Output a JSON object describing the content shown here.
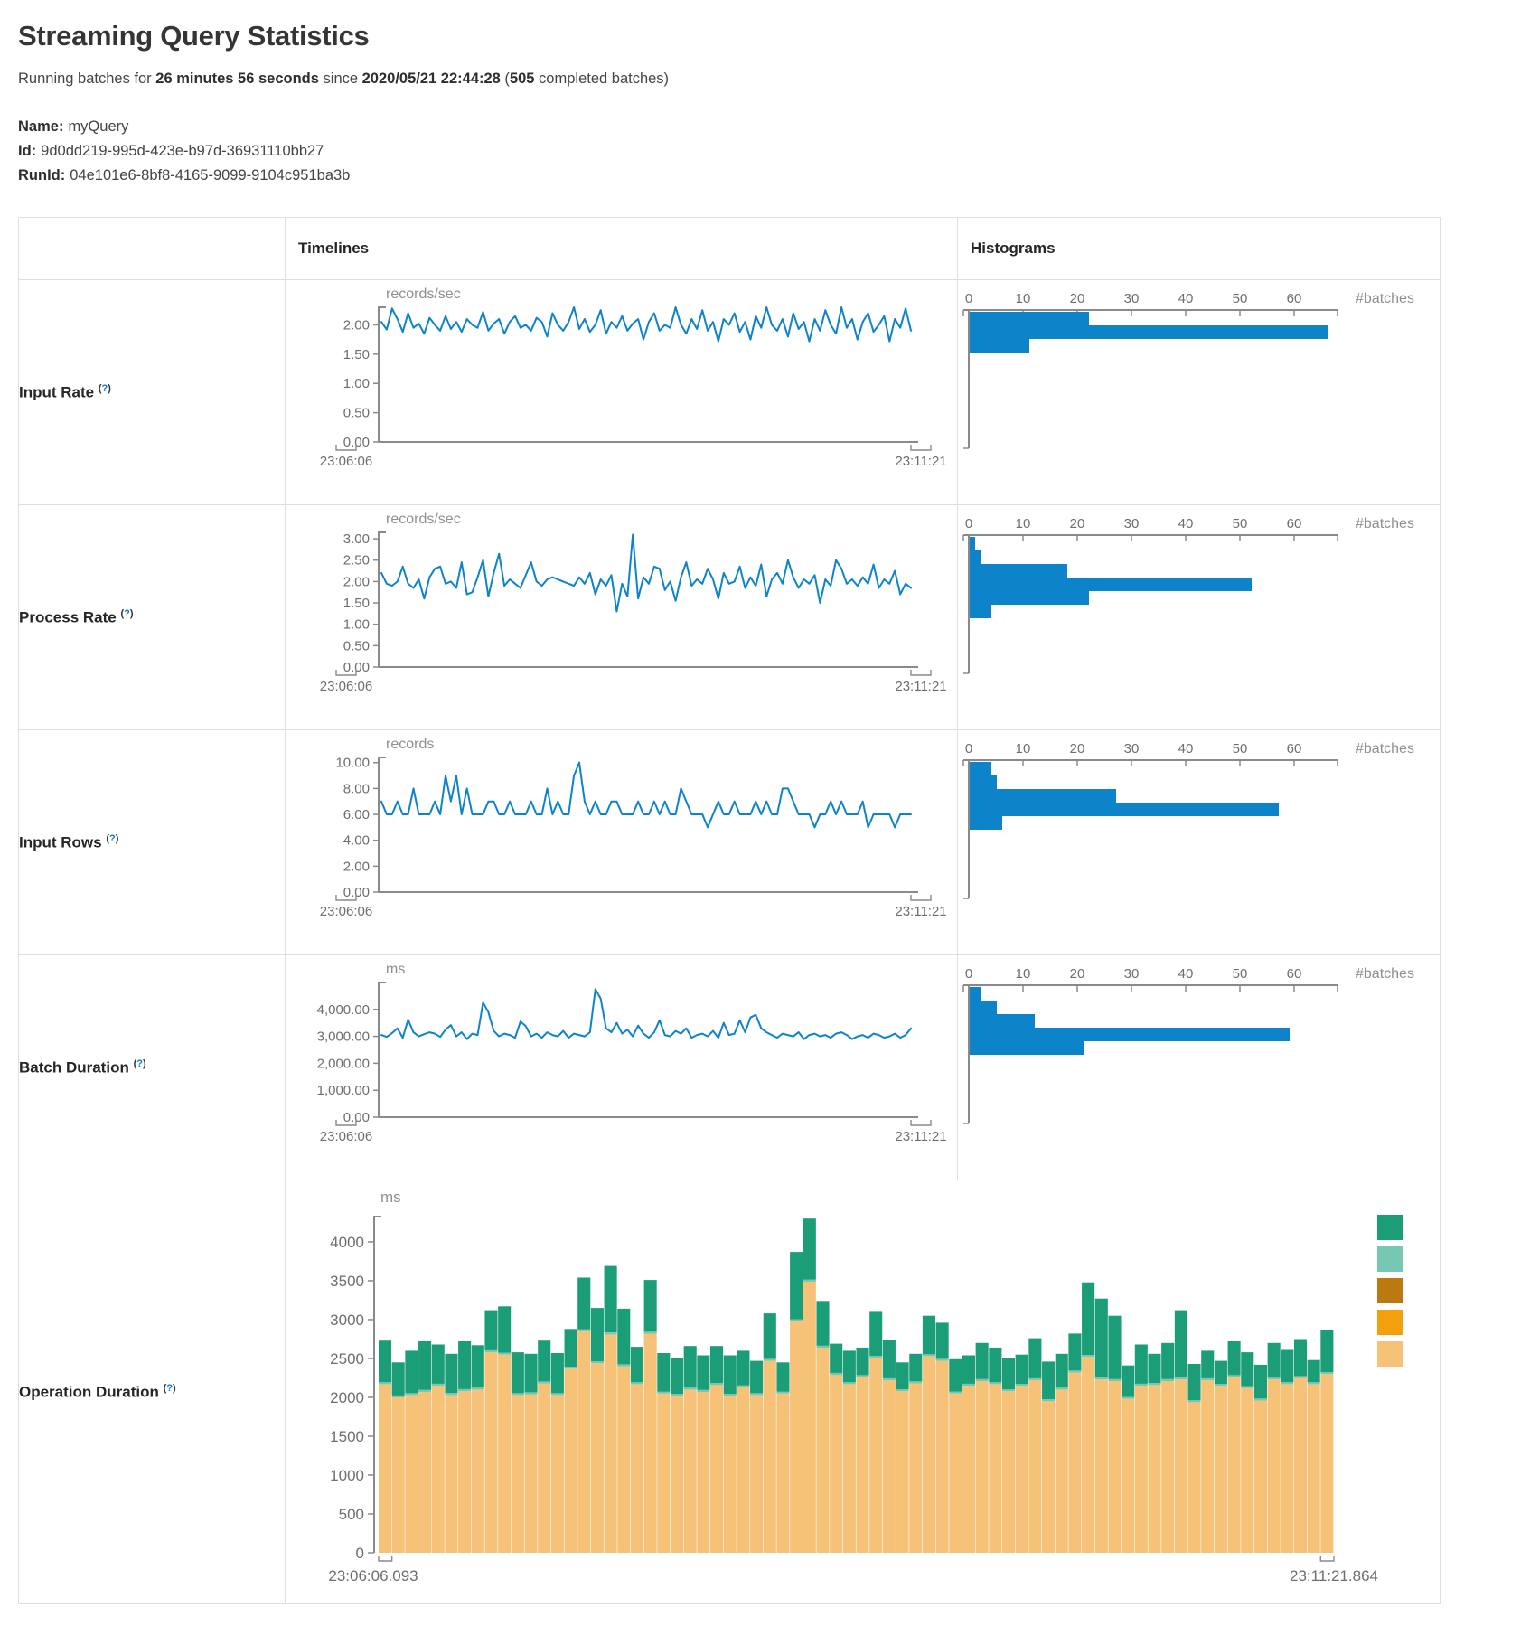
{
  "page": {
    "title": "Streaming Query Statistics",
    "summary": {
      "prefix": "Running batches for ",
      "duration": "26 minutes 56 seconds",
      "since": " since ",
      "start_time": "2020/05/21 22:44:28",
      "paren_open": " (",
      "batch_count": "505",
      "suffix": " completed batches)"
    },
    "query": {
      "name_label": "Name:",
      "name": "myQuery",
      "id_label": "Id:",
      "id": "9d0dd219-995d-423e-b97d-36931110bb27",
      "runid_label": "RunId:",
      "runid": "04e101e6-8bf8-4165-9099-9104c951ba3b"
    }
  },
  "table": {
    "headers": [
      "Timelines",
      "Histograms"
    ],
    "help": {
      "open": "(",
      "q": "?",
      "close": ")"
    },
    "rows": [
      {
        "label": "Input Rate"
      },
      {
        "label": "Process Rate"
      },
      {
        "label": "Input Rows"
      },
      {
        "label": "Batch Duration"
      },
      {
        "label": "Operation Duration"
      }
    ]
  },
  "colors": {
    "accent_blue": "#0d84c9",
    "op_green": "#1b9e77",
    "op_light_teal": "#76c7b4",
    "op_brown": "#bb7a10",
    "op_orange": "#f2a10c",
    "op_tan": "#f6c277"
  },
  "chart_data": [
    {
      "metric": "Input Rate",
      "timeline": {
        "type": "line",
        "unit": "records/sec",
        "x_start": "23:06:06",
        "x_end": "23:11:21",
        "axis_max": 2.3,
        "yticks": [
          {
            "v": 2,
            "label": "2.00"
          },
          {
            "v": 1.5,
            "label": "1.50"
          },
          {
            "v": 1,
            "label": "1.00"
          },
          {
            "v": 0.5,
            "label": "0.50"
          },
          {
            "v": 0,
            "label": "0.00"
          }
        ],
        "values": [
          2.05,
          1.92,
          2.28,
          2.1,
          1.88,
          2.2,
          1.95,
          2.02,
          1.85,
          2.12,
          2.0,
          1.9,
          2.15,
          1.93,
          2.05,
          1.88,
          2.1,
          2.0,
          1.95,
          2.22,
          1.9,
          2.02,
          2.1,
          1.85,
          2.05,
          2.15,
          1.95,
          2.0,
          1.9,
          2.12,
          2.05,
          1.8,
          2.2,
          2.0,
          1.9,
          2.05,
          2.3,
          1.93,
          2.1,
          1.88,
          2.0,
          2.25,
          1.85,
          2.05,
          1.95,
          2.15,
          1.9,
          2.02,
          2.1,
          1.75,
          2.05,
          2.2,
          1.9,
          2.0,
          1.95,
          2.3,
          2.0,
          1.85,
          2.1,
          1.93,
          2.25,
          1.9,
          2.05,
          1.72,
          2.1,
          2.0,
          2.2,
          1.88,
          2.05,
          1.75,
          2.15,
          1.95,
          2.3,
          2.0,
          1.9,
          2.1,
          1.8,
          2.2,
          1.93,
          2.05,
          1.72,
          2.1,
          1.9,
          2.25,
          2.0,
          1.85,
          2.3,
          1.95,
          2.1,
          1.75,
          2.05,
          2.2,
          1.88,
          2.0,
          2.15,
          1.72,
          2.1,
          1.95,
          2.28,
          1.9
        ]
      },
      "histogram": {
        "type": "bar",
        "count_label": "#batches",
        "xticks": [
          "0",
          "10",
          "20",
          "30",
          "40",
          "50",
          "60"
        ],
        "bins": [
          22,
          66,
          11
        ]
      }
    },
    {
      "metric": "Process Rate",
      "timeline": {
        "type": "line",
        "unit": "records/sec",
        "x_start": "23:06:06",
        "x_end": "23:11:21",
        "axis_max": 3.15,
        "yticks": [
          {
            "v": 3,
            "label": "3.00"
          },
          {
            "v": 2.5,
            "label": "2.50"
          },
          {
            "v": 2,
            "label": "2.00"
          },
          {
            "v": 1.5,
            "label": "1.50"
          },
          {
            "v": 1,
            "label": "1.00"
          },
          {
            "v": 0.5,
            "label": "0.50"
          },
          {
            "v": 0,
            "label": "0.00"
          }
        ],
        "values": [
          2.2,
          1.95,
          1.9,
          2.0,
          2.35,
          1.95,
          1.85,
          2.05,
          1.6,
          2.1,
          2.3,
          2.35,
          1.95,
          2.0,
          1.85,
          2.45,
          1.7,
          1.75,
          2.1,
          2.5,
          1.65,
          2.2,
          2.65,
          1.9,
          2.05,
          1.95,
          1.85,
          2.15,
          2.45,
          2.0,
          1.9,
          2.05,
          2.1,
          2.05,
          2.0,
          1.95,
          1.9,
          2.1,
          1.95,
          2.2,
          1.7,
          2.05,
          1.9,
          2.15,
          1.3,
          1.95,
          1.65,
          3.1,
          1.6,
          2.1,
          1.95,
          2.35,
          2.3,
          1.8,
          2.0,
          1.55,
          2.1,
          2.45,
          1.9,
          2.05,
          1.95,
          2.3,
          2.05,
          1.6,
          2.2,
          1.95,
          2.0,
          2.35,
          1.85,
          2.1,
          1.9,
          2.4,
          1.65,
          2.05,
          2.2,
          1.95,
          2.5,
          2.1,
          1.85,
          2.05,
          1.95,
          2.15,
          1.5,
          2.05,
          1.9,
          2.5,
          2.3,
          1.95,
          2.05,
          1.9,
          2.1,
          1.95,
          2.4,
          1.85,
          2.05,
          1.95,
          2.25,
          1.7,
          1.95,
          1.85
        ]
      },
      "histogram": {
        "type": "bar",
        "count_label": "#batches",
        "xticks": [
          "0",
          "10",
          "20",
          "30",
          "40",
          "50",
          "60"
        ],
        "bins": [
          1,
          2,
          18,
          52,
          22,
          4
        ]
      }
    },
    {
      "metric": "Input Rows",
      "timeline": {
        "type": "line",
        "unit": "records",
        "x_start": "23:06:06",
        "x_end": "23:11:21",
        "axis_max": 10.4,
        "yticks": [
          {
            "v": 10,
            "label": "10.00"
          },
          {
            "v": 8,
            "label": "8.00"
          },
          {
            "v": 6,
            "label": "6.00"
          },
          {
            "v": 4,
            "label": "4.00"
          },
          {
            "v": 2,
            "label": "2.00"
          },
          {
            "v": 0,
            "label": "0.00"
          }
        ],
        "values": [
          7,
          6,
          6,
          7,
          6,
          6,
          8,
          6,
          6,
          6,
          7,
          6,
          9,
          7,
          9,
          6,
          8,
          6,
          6,
          6,
          7,
          7,
          6,
          6,
          7,
          6,
          6,
          6,
          7,
          6,
          6,
          8,
          6,
          7,
          6,
          6,
          9,
          10,
          7,
          6,
          7,
          6,
          6,
          7,
          7,
          6,
          6,
          6,
          7,
          6,
          6,
          7,
          6,
          7,
          6,
          6,
          8,
          7,
          6,
          6,
          6,
          5,
          6,
          7,
          6,
          6,
          7,
          6,
          6,
          6,
          7,
          6,
          7,
          6,
          6,
          8,
          8,
          7,
          6,
          6,
          6,
          5,
          6,
          6,
          7,
          6,
          7,
          6,
          6,
          6,
          7,
          5,
          6,
          6,
          6,
          6,
          5,
          6,
          6,
          6
        ]
      },
      "histogram": {
        "type": "bar",
        "count_label": "#batches",
        "xticks": [
          "0",
          "10",
          "20",
          "30",
          "40",
          "50",
          "60"
        ],
        "bins": [
          4,
          5,
          27,
          57,
          6
        ]
      }
    },
    {
      "metric": "Batch Duration",
      "timeline": {
        "type": "line",
        "unit": "ms",
        "x_start": "23:06:06",
        "x_end": "23:11:21",
        "axis_max": 5000,
        "yticks": [
          {
            "v": 4000,
            "label": "4,000.00"
          },
          {
            "v": 3000,
            "label": "3,000.00"
          },
          {
            "v": 2000,
            "label": "2,000.00"
          },
          {
            "v": 1000,
            "label": "1,000.00"
          },
          {
            "v": 0,
            "label": "0.00"
          }
        ],
        "values": [
          3050,
          2980,
          3120,
          3300,
          2950,
          3620,
          3150,
          3000,
          3080,
          3150,
          3100,
          2980,
          3250,
          3420,
          3000,
          3150,
          2900,
          3100,
          3050,
          4250,
          3900,
          3200,
          3000,
          3100,
          3050,
          2950,
          3550,
          3380,
          3000,
          3100,
          2950,
          3150,
          3050,
          3000,
          3200,
          2950,
          3100,
          3050,
          3000,
          3150,
          4750,
          4400,
          3300,
          3150,
          3500,
          3100,
          3250,
          3000,
          3400,
          3100,
          2950,
          3150,
          3600,
          3050,
          3000,
          3200,
          3100,
          3300,
          2950,
          3050,
          3100,
          3000,
          3200,
          2950,
          3500,
          3050,
          3100,
          3600,
          3150,
          3700,
          3800,
          3300,
          3150,
          3050,
          2950,
          3100,
          3050,
          3000,
          3150,
          2900,
          3050,
          3100,
          3000,
          3050,
          2950,
          3100,
          3150,
          3050,
          2900,
          3000,
          3050,
          2950,
          3100,
          3050,
          2950,
          3000,
          3100,
          2950,
          3050,
          3300
        ]
      },
      "histogram": {
        "type": "bar",
        "count_label": "#batches",
        "xticks": [
          "0",
          "10",
          "20",
          "30",
          "40",
          "50",
          "60"
        ],
        "bins": [
          2,
          5,
          12,
          59,
          21
        ]
      }
    },
    {
      "metric": "Operation Duration",
      "type": "stacked-bar",
      "unit": "ms",
      "x_start": "23:06:06.093",
      "x_end": "23:11:21.864",
      "axis_max": 4325,
      "yticks": [
        {
          "v": 4000,
          "label": "4000"
        },
        {
          "v": 3500,
          "label": "3500"
        },
        {
          "v": 3000,
          "label": "3000"
        },
        {
          "v": 2500,
          "label": "2500"
        },
        {
          "v": 2000,
          "label": "2000"
        },
        {
          "v": 1500,
          "label": "1500"
        },
        {
          "v": 1000,
          "label": "1000"
        },
        {
          "v": 500,
          "label": "500"
        },
        {
          "v": 0,
          "label": "0"
        }
      ],
      "stack": {
        "sliver": 25,
        "tan": [
          2170,
          2000,
          2030,
          2070,
          2150,
          2030,
          2080,
          2100,
          2580,
          2550,
          2030,
          2040,
          2180,
          2030,
          2370,
          2850,
          2440,
          2810,
          2400,
          2170,
          2820,
          2050,
          2020,
          2100,
          2070,
          2160,
          2020,
          2130,
          2030,
          2470,
          2050,
          2980,
          3490,
          2640,
          2290,
          2170,
          2260,
          2510,
          2220,
          2080,
          2180,
          2530,
          2470,
          2050,
          2150,
          2210,
          2170,
          2080,
          2150,
          2220,
          1950,
          2100,
          2320,
          2520,
          2230,
          2210,
          1980,
          2150,
          2160,
          2210,
          2230,
          1940,
          2220,
          2150,
          2260,
          2120,
          1960,
          2230,
          2170,
          2250,
          2170,
          2300
        ],
        "green": [
          535,
          425,
          545,
          625,
          505,
          505,
          615,
          545,
          515,
          595,
          525,
          495,
          525,
          515,
          485,
          665,
          685,
          855,
          715,
          455,
          665,
          495,
          465,
          535,
          445,
          475,
          495,
          445,
          415,
          585,
          375,
          865,
          785,
          575,
          375,
          405,
          355,
          565,
          495,
          345,
          355,
          495,
          465,
          415,
          365,
          465,
          445,
          395,
          375,
          515,
          485,
          435,
          475,
          935,
          1015,
          815,
          405,
          505,
          375,
          465,
          865,
          465,
          355,
          295,
          435,
          435,
          435,
          445,
          415,
          475,
          285,
          535
        ]
      },
      "legend": [
        {
          "name": "teal-green",
          "color": "#1b9e77"
        },
        {
          "name": "light-teal",
          "color": "#76c7b4"
        },
        {
          "name": "brown",
          "color": "#bb7a10"
        },
        {
          "name": "orange",
          "color": "#f2a10c"
        },
        {
          "name": "tan",
          "color": "#f6c277"
        }
      ]
    }
  ]
}
